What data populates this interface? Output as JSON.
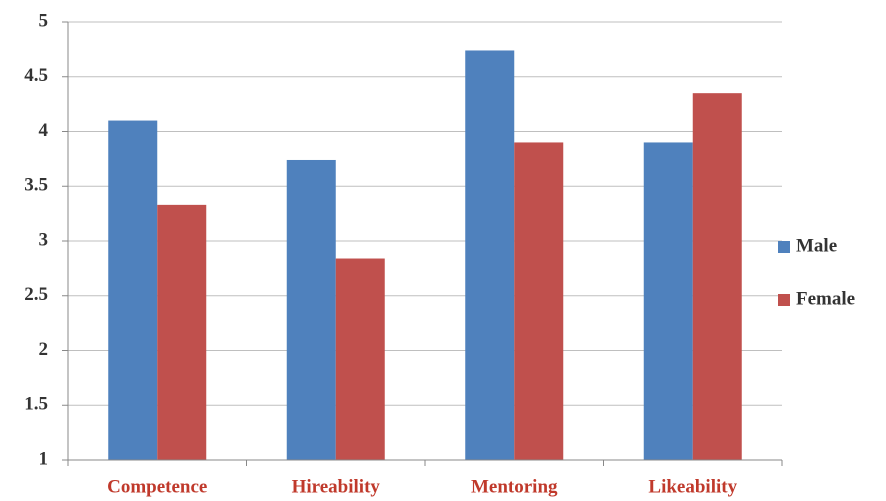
{
  "chart_data": {
    "type": "bar",
    "categories": [
      "Competence",
      "Hireability",
      "Mentoring",
      "Likeability"
    ],
    "series": [
      {
        "name": "Male",
        "color": "#4f81bd",
        "values": [
          4.1,
          3.74,
          4.74,
          3.9
        ]
      },
      {
        "name": "Female",
        "color": "#c0504d",
        "values": [
          3.33,
          2.84,
          3.9,
          4.35
        ]
      }
    ],
    "ylim": [
      1,
      5
    ],
    "yticks": [
      1,
      1.5,
      2,
      2.5,
      3,
      3.5,
      4,
      4.5,
      5
    ],
    "grid": true,
    "legend": "right"
  }
}
